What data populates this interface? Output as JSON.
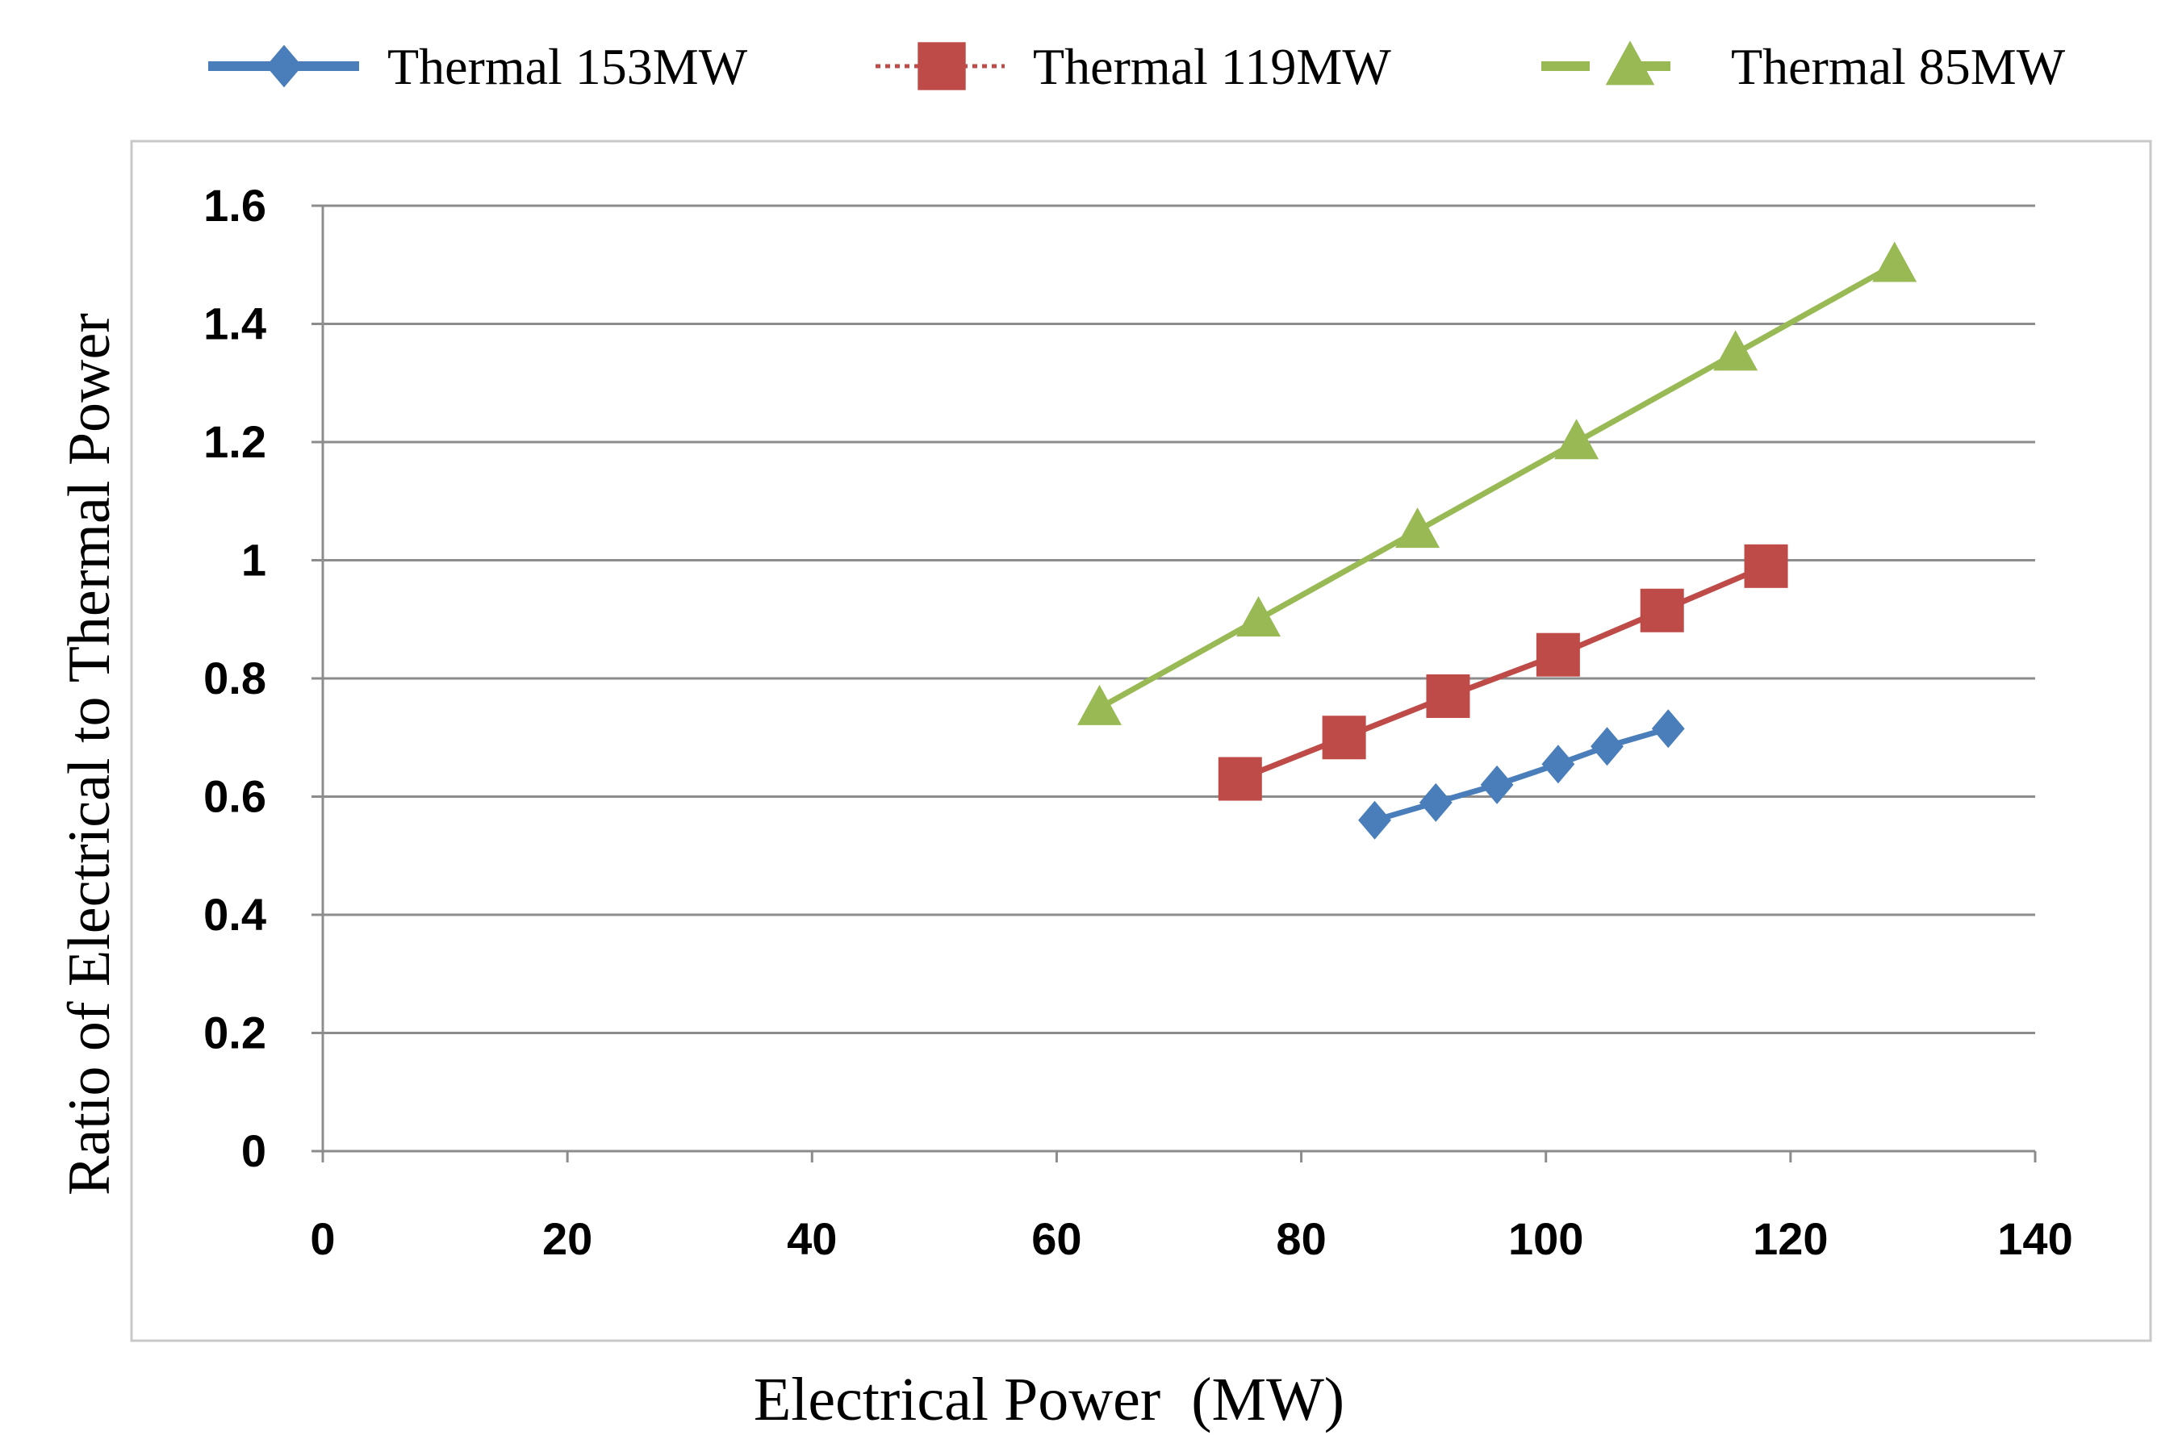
{
  "chart_data": {
    "type": "line",
    "title": "",
    "xlabel": "Electrical Power  (MW)",
    "ylabel": "Ratio of Electrical to Thermal Power",
    "xlim": [
      0,
      140
    ],
    "ylim": [
      0,
      1.6
    ],
    "xticks": [
      "0",
      "20",
      "40",
      "60",
      "80",
      "100",
      "120",
      "140"
    ],
    "yticks": [
      "0",
      "0.2",
      "0.4",
      "0.6",
      "0.8",
      "1",
      "1.2",
      "1.4",
      "1.6"
    ],
    "grid": true,
    "legend": "top",
    "series": [
      {
        "name": "Thermal 153MW",
        "color": "#4a7ebb",
        "marker": "diamond",
        "line": "solid",
        "x": [
          86,
          91,
          96,
          101,
          105,
          110
        ],
        "y": [
          0.56,
          0.59,
          0.62,
          0.655,
          0.685,
          0.715
        ]
      },
      {
        "name": "Thermal 119MW",
        "color": "#be4b48",
        "marker": "square",
        "line": "solid",
        "x": [
          75,
          83.5,
          92,
          101,
          109.5,
          118
        ],
        "y": [
          0.63,
          0.7,
          0.77,
          0.84,
          0.915,
          0.99
        ]
      },
      {
        "name": "Thermal 85MW",
        "color": "#98b954",
        "marker": "triangle",
        "line": "solid",
        "x": [
          63.5,
          76.5,
          89.5,
          102.5,
          115.5,
          128.5
        ],
        "y": [
          0.75,
          0.9,
          1.05,
          1.2,
          1.35,
          1.5
        ]
      }
    ]
  }
}
